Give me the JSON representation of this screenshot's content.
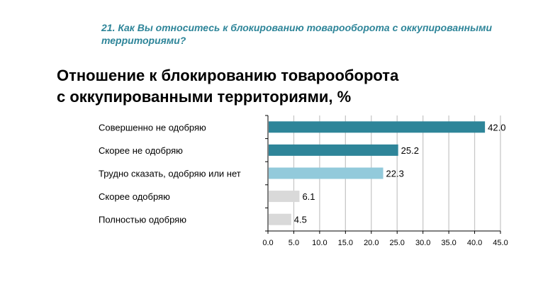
{
  "question": "21. Как Вы относитесь к блокированию товарооборота с оккупированными территориями?",
  "chart_data": {
    "type": "bar",
    "orientation": "horizontal",
    "title_lines": [
      "Отношение к блокированию товарооборота",
      "с оккупированными территориями, %"
    ],
    "categories": [
      "Совершенно не одобряю",
      "Скорее не одобряю",
      "Трудно сказать, одобряю или нет",
      "Скорее одобряю",
      "Полностью одобряю"
    ],
    "values": [
      42.0,
      25.2,
      22.3,
      6.1,
      4.5
    ],
    "colors": [
      "#2e8599",
      "#2e8599",
      "#92cadb",
      "#d9d9d9",
      "#d9d9d9"
    ],
    "xlim": [
      0,
      45
    ],
    "xticks": [
      "0.0",
      "5.0",
      "10.0",
      "15.0",
      "20.0",
      "25.0",
      "30.0",
      "35.0",
      "40.0",
      "45.0"
    ],
    "grid": true
  }
}
